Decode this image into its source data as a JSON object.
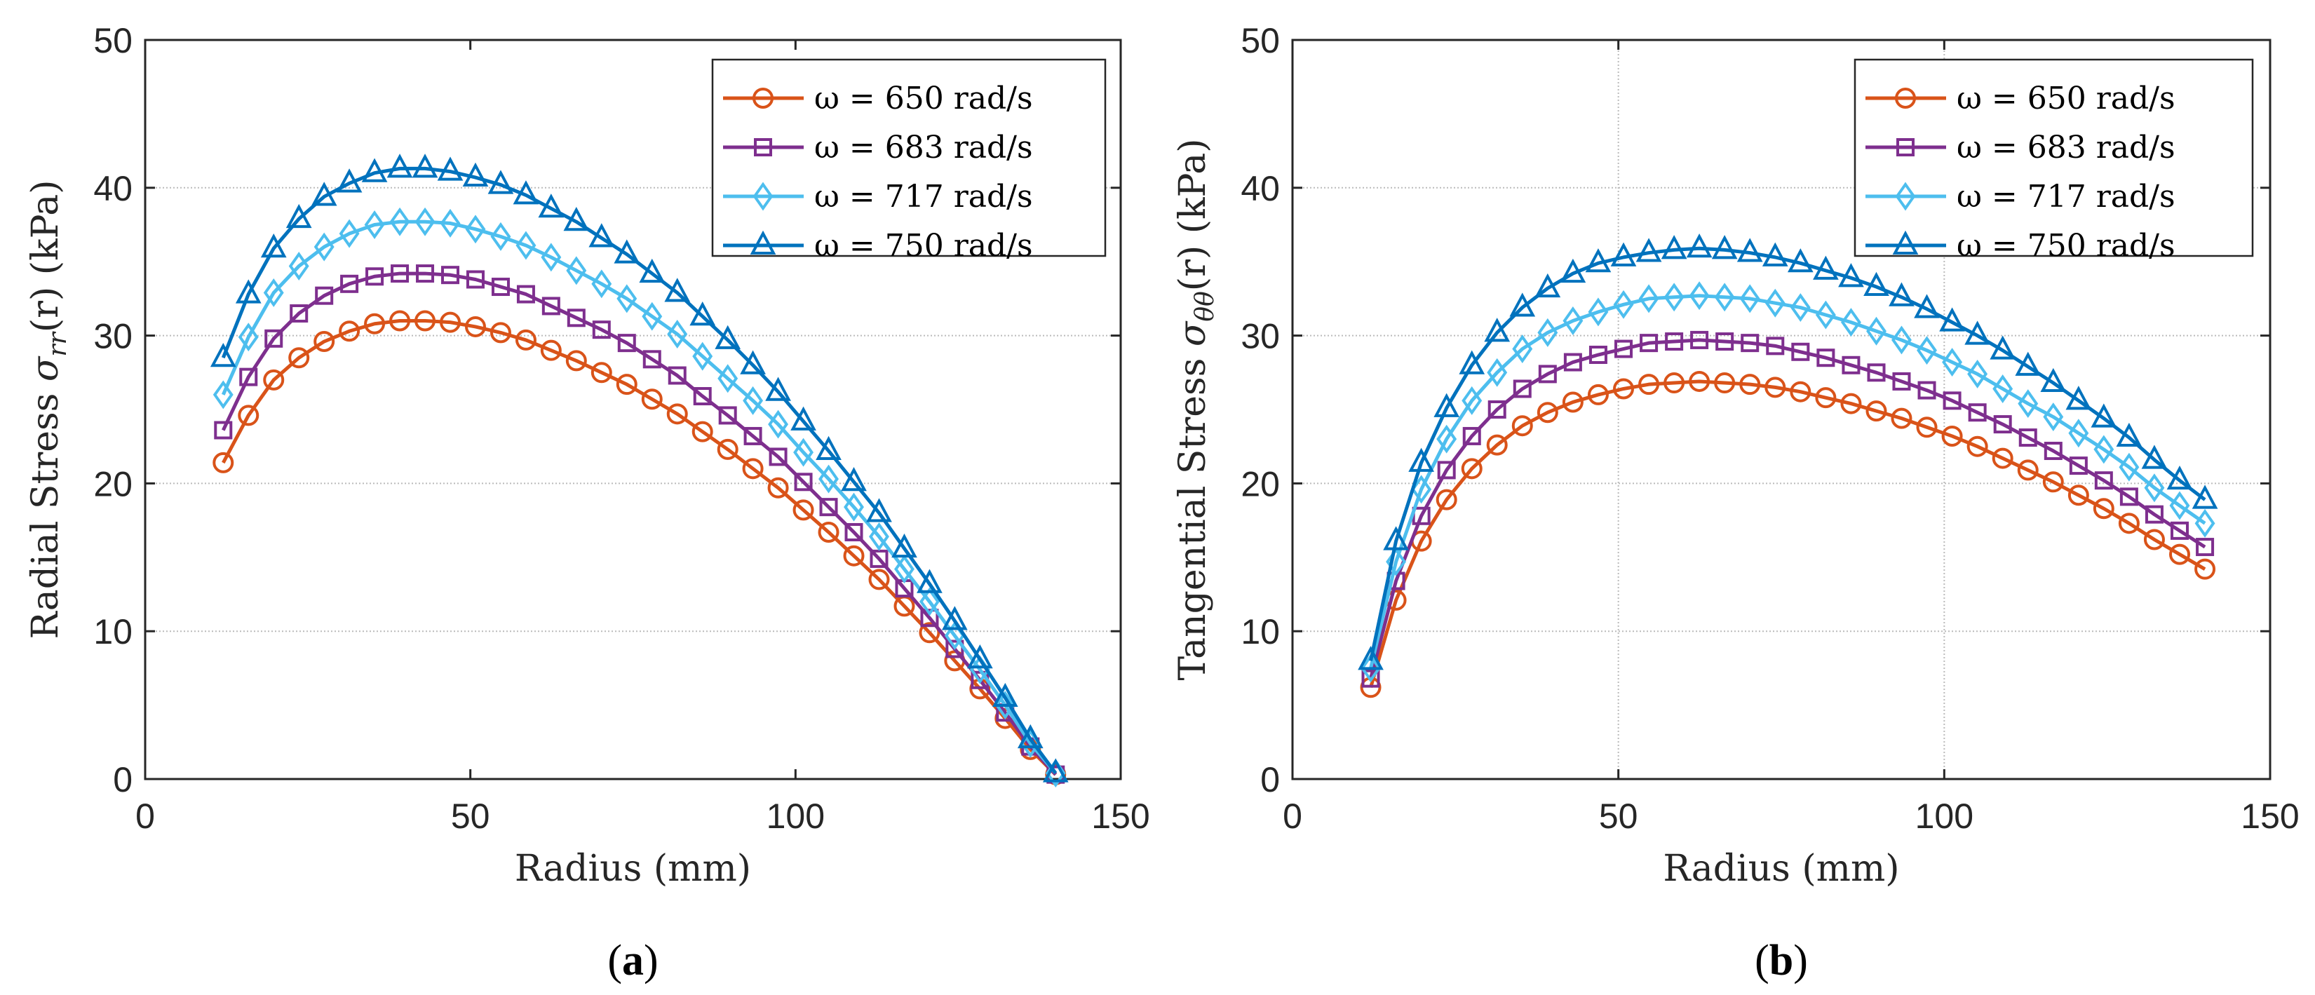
{
  "chart_data": [
    {
      "type": "line",
      "panel_label": "a",
      "title": "",
      "xlabel": "Radius (mm)",
      "ylabel": {
        "prefix": "Radial Stress ",
        "symbol": "σ",
        "subscript": "rr",
        "suffix": "(r) (kPa)"
      },
      "xlim": [
        0,
        150
      ],
      "ylim": [
        0,
        50
      ],
      "xticks": [
        0,
        50,
        100,
        150
      ],
      "yticks": [
        0,
        10,
        20,
        30,
        40,
        50
      ],
      "grid": "partial",
      "legend_position": "top-right",
      "x": [
        12,
        15.88,
        19.76,
        23.64,
        27.52,
        31.39,
        35.27,
        39.15,
        43.03,
        46.91,
        50.79,
        54.67,
        58.55,
        62.42,
        66.3,
        70.18,
        74.06,
        77.94,
        81.82,
        85.7,
        89.58,
        93.45,
        97.33,
        101.21,
        105.09,
        108.97,
        112.85,
        116.73,
        120.61,
        124.48,
        128.36,
        132.24,
        136.12,
        140
      ],
      "series": [
        {
          "name": "ω = 650 rad/s",
          "color": "#D95319",
          "marker": "circle",
          "values": [
            21.4,
            24.6,
            27.0,
            28.5,
            29.6,
            30.3,
            30.8,
            31.0,
            31.0,
            30.9,
            30.6,
            30.2,
            29.7,
            29.0,
            28.3,
            27.5,
            26.7,
            25.7,
            24.7,
            23.5,
            22.3,
            21.0,
            19.7,
            18.2,
            16.7,
            15.1,
            13.5,
            11.7,
            9.9,
            8.0,
            6.1,
            4.1,
            2.0,
            0.3
          ]
        },
        {
          "name": "ω = 683 rad/s",
          "color": "#7E2F8E",
          "marker": "square",
          "values": [
            23.6,
            27.2,
            29.8,
            31.5,
            32.7,
            33.5,
            34.0,
            34.2,
            34.2,
            34.1,
            33.8,
            33.3,
            32.8,
            32.0,
            31.2,
            30.4,
            29.5,
            28.4,
            27.3,
            25.9,
            24.6,
            23.2,
            21.8,
            20.1,
            18.4,
            16.7,
            14.9,
            12.9,
            10.9,
            8.8,
            6.7,
            4.5,
            2.2,
            0.3
          ]
        },
        {
          "name": "ω = 717 rad/s",
          "color": "#4DBEEE",
          "marker": "diamond",
          "values": [
            26.0,
            29.9,
            32.9,
            34.7,
            36.0,
            36.9,
            37.5,
            37.7,
            37.7,
            37.6,
            37.2,
            36.7,
            36.1,
            35.3,
            34.4,
            33.5,
            32.5,
            31.3,
            30.1,
            28.6,
            27.1,
            25.6,
            24.0,
            22.1,
            20.3,
            18.4,
            16.4,
            14.2,
            12.0,
            9.7,
            7.4,
            5.0,
            2.4,
            0.4
          ]
        },
        {
          "name": "ω = 750 rad/s",
          "color": "#0072BD",
          "marker": "triangle",
          "values": [
            28.5,
            32.8,
            35.9,
            37.9,
            39.4,
            40.3,
            41.0,
            41.3,
            41.3,
            41.1,
            40.7,
            40.2,
            39.5,
            38.6,
            37.7,
            36.6,
            35.5,
            34.2,
            32.9,
            31.3,
            29.7,
            28.0,
            26.2,
            24.2,
            22.2,
            20.1,
            18.0,
            15.6,
            13.2,
            10.7,
            8.1,
            5.5,
            2.7,
            0.4
          ]
        }
      ]
    },
    {
      "type": "line",
      "panel_label": "b",
      "title": "",
      "xlabel": "Radius (mm)",
      "ylabel": {
        "prefix": "Tangential Stress ",
        "symbol": "σ",
        "subscript": "θθ",
        "suffix": "(r) (kPa)"
      },
      "xlim": [
        0,
        150
      ],
      "ylim": [
        0,
        50
      ],
      "xticks": [
        0,
        50,
        100,
        150
      ],
      "yticks": [
        0,
        10,
        20,
        30,
        40,
        50
      ],
      "grid": "partial",
      "legend_position": "top-right",
      "x": [
        12,
        15.88,
        19.76,
        23.64,
        27.52,
        31.39,
        35.27,
        39.15,
        43.03,
        46.91,
        50.79,
        54.67,
        58.55,
        62.42,
        66.3,
        70.18,
        74.06,
        77.94,
        81.82,
        85.7,
        89.58,
        93.45,
        97.33,
        101.21,
        105.09,
        108.97,
        112.85,
        116.73,
        120.61,
        124.48,
        128.36,
        132.24,
        136.12,
        140
      ],
      "series": [
        {
          "name": "ω = 650 rad/s",
          "color": "#D95319",
          "marker": "circle",
          "values": [
            6.2,
            12.1,
            16.1,
            18.9,
            21.0,
            22.6,
            23.9,
            24.8,
            25.5,
            26.0,
            26.4,
            26.7,
            26.8,
            26.9,
            26.8,
            26.7,
            26.5,
            26.2,
            25.8,
            25.4,
            24.9,
            24.4,
            23.8,
            23.2,
            22.5,
            21.7,
            20.9,
            20.1,
            19.2,
            18.3,
            17.3,
            16.2,
            15.2,
            14.2
          ]
        },
        {
          "name": "ω = 683 rad/s",
          "color": "#7E2F8E",
          "marker": "square",
          "values": [
            6.8,
            13.4,
            17.8,
            20.9,
            23.2,
            25.0,
            26.4,
            27.4,
            28.2,
            28.7,
            29.1,
            29.5,
            29.6,
            29.7,
            29.6,
            29.5,
            29.3,
            28.9,
            28.5,
            28.0,
            27.5,
            26.9,
            26.3,
            25.6,
            24.8,
            24.0,
            23.1,
            22.2,
            21.2,
            20.2,
            19.1,
            17.9,
            16.8,
            15.7
          ]
        },
        {
          "name": "ω = 717 rad/s",
          "color": "#4DBEEE",
          "marker": "diamond",
          "values": [
            7.5,
            14.7,
            19.6,
            23.0,
            25.6,
            27.5,
            29.1,
            30.2,
            31.0,
            31.6,
            32.1,
            32.5,
            32.6,
            32.7,
            32.6,
            32.5,
            32.2,
            31.9,
            31.4,
            30.9,
            30.3,
            29.7,
            29.0,
            28.2,
            27.4,
            26.4,
            25.4,
            24.5,
            23.4,
            22.3,
            21.1,
            19.7,
            18.5,
            17.3
          ]
        },
        {
          "name": "ω = 750 rad/s",
          "color": "#0072BD",
          "marker": "triangle",
          "values": [
            8.0,
            16.1,
            21.4,
            25.1,
            28.0,
            30.2,
            31.9,
            33.2,
            34.2,
            34.9,
            35.3,
            35.6,
            35.8,
            35.9,
            35.8,
            35.6,
            35.3,
            34.9,
            34.4,
            33.9,
            33.3,
            32.6,
            31.8,
            30.9,
            30.0,
            29.0,
            27.9,
            26.8,
            25.6,
            24.4,
            23.1,
            21.6,
            20.2,
            18.9
          ]
        }
      ]
    }
  ]
}
